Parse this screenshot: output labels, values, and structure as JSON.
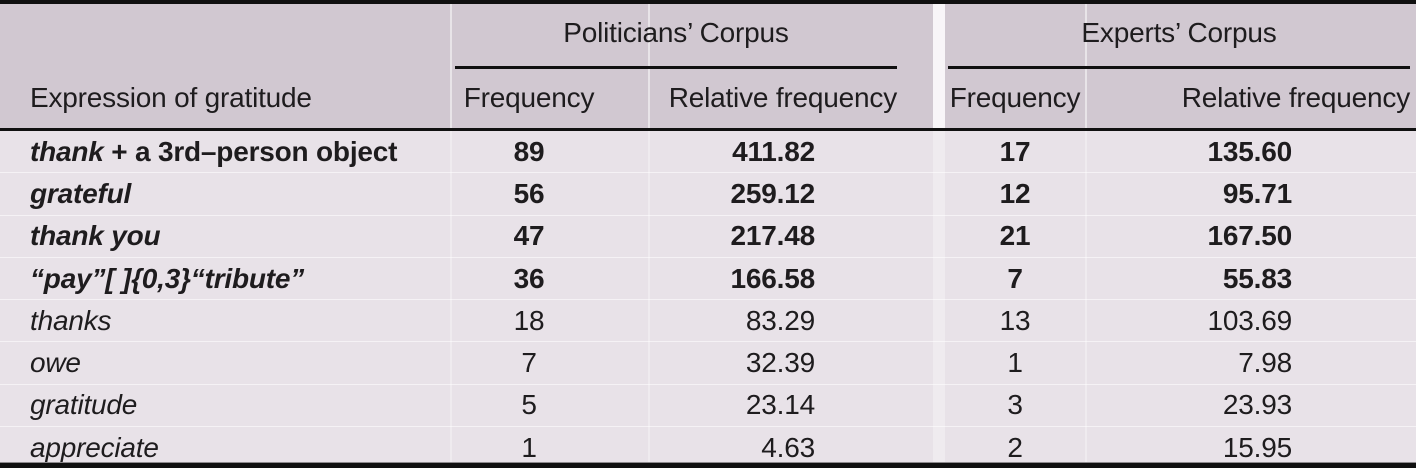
{
  "colors": {
    "header_bg": "#d1c8d1",
    "body_bg": "#e8e2e8",
    "rule": "#101010",
    "text": "#1e1c1e",
    "group_gap": "#f8f5f8"
  },
  "table": {
    "stub_header": "Expression of gratitude",
    "groups": [
      {
        "label": "Politicians’ Corpus",
        "col1": "Frequency",
        "col2": "Relative frequency"
      },
      {
        "label": "Experts’ Corpus",
        "col1": "Frequency",
        "col2": "Relative frequency"
      }
    ],
    "rows": [
      {
        "segments": [
          {
            "text": "thank",
            "italic": true
          },
          {
            "text": " + a 3rd–person object",
            "italic": false
          }
        ],
        "bold": true,
        "cells": [
          "89",
          "411.82",
          "17",
          "135.60"
        ]
      },
      {
        "segments": [
          {
            "text": "grateful",
            "italic": true
          }
        ],
        "bold": true,
        "cells": [
          "56",
          "259.12",
          "12",
          "95.71"
        ]
      },
      {
        "segments": [
          {
            "text": "thank you",
            "italic": true
          }
        ],
        "bold": true,
        "cells": [
          "47",
          "217.48",
          "21",
          "167.50"
        ]
      },
      {
        "segments": [
          {
            "text": "“pay”[ ]{0,3}“tribute”",
            "italic": true
          }
        ],
        "bold": true,
        "cells": [
          "36",
          "166.58",
          "7",
          "55.83"
        ]
      },
      {
        "segments": [
          {
            "text": "thanks",
            "italic": true
          }
        ],
        "bold": false,
        "cells": [
          "18",
          "83.29",
          "13",
          "103.69"
        ]
      },
      {
        "segments": [
          {
            "text": "owe",
            "italic": true
          }
        ],
        "bold": false,
        "cells": [
          "7",
          "32.39",
          "1",
          "7.98"
        ]
      },
      {
        "segments": [
          {
            "text": "gratitude",
            "italic": true
          }
        ],
        "bold": false,
        "cells": [
          "5",
          "23.14",
          "3",
          "23.93"
        ]
      },
      {
        "segments": [
          {
            "text": "appreciate",
            "italic": true
          }
        ],
        "bold": false,
        "cells": [
          "1",
          "4.63",
          "2",
          "15.95"
        ]
      }
    ]
  }
}
